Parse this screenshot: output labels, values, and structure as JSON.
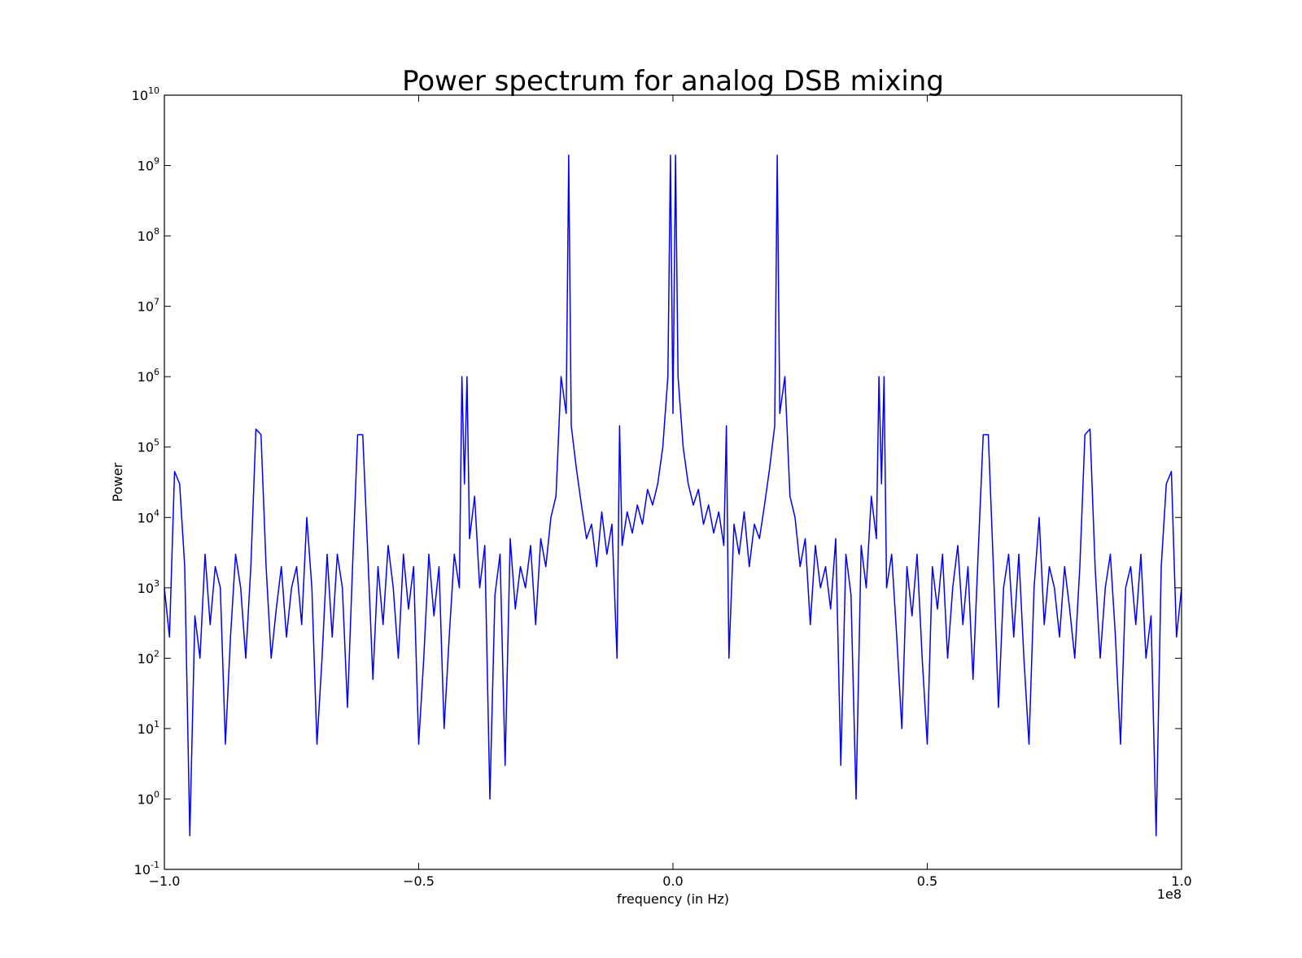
{
  "chart_data": {
    "type": "line",
    "title": "Power spectrum for analog DSB mixing",
    "xlabel": "frequency (in Hz)",
    "ylabel": "Power",
    "x_offset_text": "1e8",
    "yscale": "log",
    "xlim": [
      -100000000.0,
      100000000.0
    ],
    "ylim": [
      0.1,
      10000000000.0
    ],
    "xticks": [
      {
        "value": -100000000.0,
        "label": "−1.0"
      },
      {
        "value": -50000000.0,
        "label": "−0.5"
      },
      {
        "value": 0,
        "label": "0.0"
      },
      {
        "value": 50000000.0,
        "label": "0.5"
      },
      {
        "value": 100000000.0,
        "label": "1.0"
      }
    ],
    "yticks": [
      {
        "value": 0.1,
        "label": "10",
        "exponent": "-1"
      },
      {
        "value": 1,
        "label": "10",
        "exponent": "0"
      },
      {
        "value": 10,
        "label": "10",
        "exponent": "1"
      },
      {
        "value": 100,
        "label": "10",
        "exponent": "2"
      },
      {
        "value": 1000,
        "label": "10",
        "exponent": "3"
      },
      {
        "value": 10000,
        "label": "10",
        "exponent": "4"
      },
      {
        "value": 100000,
        "label": "10",
        "exponent": "5"
      },
      {
        "value": 1000000,
        "label": "10",
        "exponent": "6"
      },
      {
        "value": 10000000,
        "label": "10",
        "exponent": "7"
      },
      {
        "value": 100000000,
        "label": "10",
        "exponent": "8"
      },
      {
        "value": 1000000000,
        "label": "10",
        "exponent": "9"
      },
      {
        "value": 10000000000,
        "label": "10",
        "exponent": "10"
      }
    ],
    "grid": false,
    "color": "#0000ff",
    "x": [
      -100000000.0,
      -99000000.0,
      -98000000.0,
      -97000000.0,
      -96000000.0,
      -95000000.0,
      -94000000.0,
      -93000000.0,
      -92000000.0,
      -91000000.0,
      -90000000.0,
      -89000000.0,
      -88000000.0,
      -87000000.0,
      -86000000.0,
      -85000000.0,
      -84000000.0,
      -83000000.0,
      -82000000.0,
      -81000000.0,
      -80000000.0,
      -79000000.0,
      -78000000.0,
      -77000000.0,
      -76000000.0,
      -75000000.0,
      -74000000.0,
      -73000000.0,
      -72000000.0,
      -71000000.0,
      -70000000.0,
      -69000000.0,
      -68000000.0,
      -67000000.0,
      -66000000.0,
      -65000000.0,
      -64000000.0,
      -63000000.0,
      -62000000.0,
      -61000000.0,
      -60000000.0,
      -59000000.0,
      -58000000.0,
      -57000000.0,
      -56000000.0,
      -55000000.0,
      -54000000.0,
      -53000000.0,
      -52000000.0,
      -51000000.0,
      -50000000.0,
      -49000000.0,
      -48000000.0,
      -47000000.0,
      -46000000.0,
      -45000000.0,
      -44000000.0,
      -43000000.0,
      -42000000.0,
      -41500000.0,
      -41000000.0,
      -40500000.0,
      -40000000.0,
      -39000000.0,
      -38000000.0,
      -37000000.0,
      -36000000.0,
      -35000000.0,
      -34000000.0,
      -33000000.0,
      -32000000.0,
      -31000000.0,
      -30000000.0,
      -29000000.0,
      -28000000.0,
      -27000000.0,
      -26000000.0,
      -25000000.0,
      -24000000.0,
      -23000000.0,
      -22000000.0,
      -21000000.0,
      -20500000.0,
      -20000000.0,
      -19000000.0,
      -18000000.0,
      -17000000.0,
      -16000000.0,
      -15000000.0,
      -14000000.0,
      -13000000.0,
      -12000000.0,
      -11000000.0,
      -10500000.0,
      -10000000.0,
      -9000000.0,
      -8000000.0,
      -7000000.0,
      -6000000.0,
      -5000000.0,
      -4000000.0,
      -3000000.0,
      -2000000.0,
      -1000000.0,
      -500000.0,
      0,
      500000.0,
      1000000.0,
      2000000.0,
      3000000.0,
      4000000.0,
      5000000.0,
      6000000.0,
      7000000.0,
      8000000.0,
      9000000.0,
      10000000.0,
      10500000.0,
      11000000.0,
      12000000.0,
      13000000.0,
      14000000.0,
      15000000.0,
      16000000.0,
      17000000.0,
      18000000.0,
      19000000.0,
      20000000.0,
      20500000.0,
      21000000.0,
      22000000.0,
      23000000.0,
      24000000.0,
      25000000.0,
      26000000.0,
      27000000.0,
      28000000.0,
      29000000.0,
      30000000.0,
      31000000.0,
      32000000.0,
      33000000.0,
      34000000.0,
      35000000.0,
      36000000.0,
      37000000.0,
      38000000.0,
      39000000.0,
      40000000.0,
      40500000.0,
      41000000.0,
      41500000.0,
      42000000.0,
      43000000.0,
      44000000.0,
      45000000.0,
      46000000.0,
      47000000.0,
      48000000.0,
      49000000.0,
      50000000.0,
      51000000.0,
      52000000.0,
      53000000.0,
      54000000.0,
      55000000.0,
      56000000.0,
      57000000.0,
      58000000.0,
      59000000.0,
      60000000.0,
      61000000.0,
      62000000.0,
      63000000.0,
      64000000.0,
      65000000.0,
      66000000.0,
      67000000.0,
      68000000.0,
      69000000.0,
      70000000.0,
      71000000.0,
      72000000.0,
      73000000.0,
      74000000.0,
      75000000.0,
      76000000.0,
      77000000.0,
      78000000.0,
      79000000.0,
      80000000.0,
      81000000.0,
      82000000.0,
      83000000.0,
      84000000.0,
      85000000.0,
      86000000.0,
      87000000.0,
      88000000.0,
      89000000.0,
      90000000.0,
      91000000.0,
      92000000.0,
      93000000.0,
      94000000.0,
      95000000.0,
      96000000.0,
      97000000.0,
      98000000.0,
      99000000.0,
      100000000.0
    ],
    "values": [
      1000.0,
      200.0,
      45000.0,
      30000.0,
      2000.0,
      0.3,
      400.0,
      100.0,
      3000.0,
      300.0,
      2000.0,
      1000.0,
      6,
      200.0,
      3000.0,
      1000.0,
      100.0,
      2000.0,
      180000.0,
      150000.0,
      2000.0,
      100.0,
      500.0,
      2000.0,
      200.0,
      1000.0,
      2000.0,
      300.0,
      10000.0,
      1000.0,
      6,
      100.0,
      3000.0,
      200.0,
      3000.0,
      1000.0,
      20,
      2000.0,
      150000.0,
      150000.0,
      3000.0,
      50,
      2000.0,
      300.0,
      4000.0,
      1000.0,
      100.0,
      3000.0,
      500.0,
      2000.0,
      6,
      100.0,
      3000.0,
      400.0,
      2000.0,
      10,
      200.0,
      3000.0,
      1000.0,
      1000000.0,
      30000.0,
      1000000.0,
      5000.0,
      20000.0,
      1000.0,
      4000.0,
      1,
      800.0,
      3000.0,
      3,
      5000.0,
      500.0,
      2000.0,
      1000.0,
      4000.0,
      300.0,
      5000.0,
      2000.0,
      10000.0,
      20000.0,
      1000000.0,
      300000.0,
      1400000000.0,
      200000.0,
      50000.0,
      15000.0,
      5000.0,
      8000.0,
      2000.0,
      12000.0,
      3000.0,
      8000.0,
      100.0,
      200000.0,
      4000.0,
      12000.0,
      6000.0,
      15000.0,
      8000.0,
      25000.0,
      15000.0,
      30000.0,
      100000.0,
      1000000.0,
      1400000000.0,
      300000.0,
      1400000000.0,
      1000000.0,
      100000.0,
      30000.0,
      15000.0,
      25000.0,
      8000.0,
      15000.0,
      6000.0,
      12000.0,
      4000.0,
      200000.0,
      100.0,
      8000.0,
      3000.0,
      12000.0,
      2000.0,
      8000.0,
      5000.0,
      15000.0,
      50000.0,
      200000.0,
      1400000000.0,
      300000.0,
      1000000.0,
      20000.0,
      10000.0,
      2000.0,
      5000.0,
      300.0,
      4000.0,
      1000.0,
      2000.0,
      500.0,
      5000.0,
      3,
      3000.0,
      800.0,
      1,
      4000.0,
      1000.0,
      20000.0,
      5000.0,
      1000000.0,
      30000.0,
      1000000.0,
      1000.0,
      3000.0,
      200.0,
      10,
      2000.0,
      400.0,
      3000.0,
      100.0,
      6,
      2000.0,
      500.0,
      3000.0,
      100.0,
      1000.0,
      4000.0,
      300.0,
      2000.0,
      50,
      3000.0,
      150000.0,
      150000.0,
      2000.0,
      20,
      1000.0,
      3000.0,
      200.0,
      3000.0,
      100.0,
      6,
      1000.0,
      10000.0,
      300.0,
      2000.0,
      1000.0,
      200.0,
      2000.0,
      500.0,
      100.0,
      2000.0,
      150000.0,
      180000.0,
      2000.0,
      100.0,
      1000.0,
      3000.0,
      200.0,
      6,
      1000.0,
      2000.0,
      300.0,
      3000.0,
      100.0,
      400.0,
      0.3,
      2000.0,
      30000.0,
      45000.0,
      200.0,
      1000.0
    ]
  }
}
